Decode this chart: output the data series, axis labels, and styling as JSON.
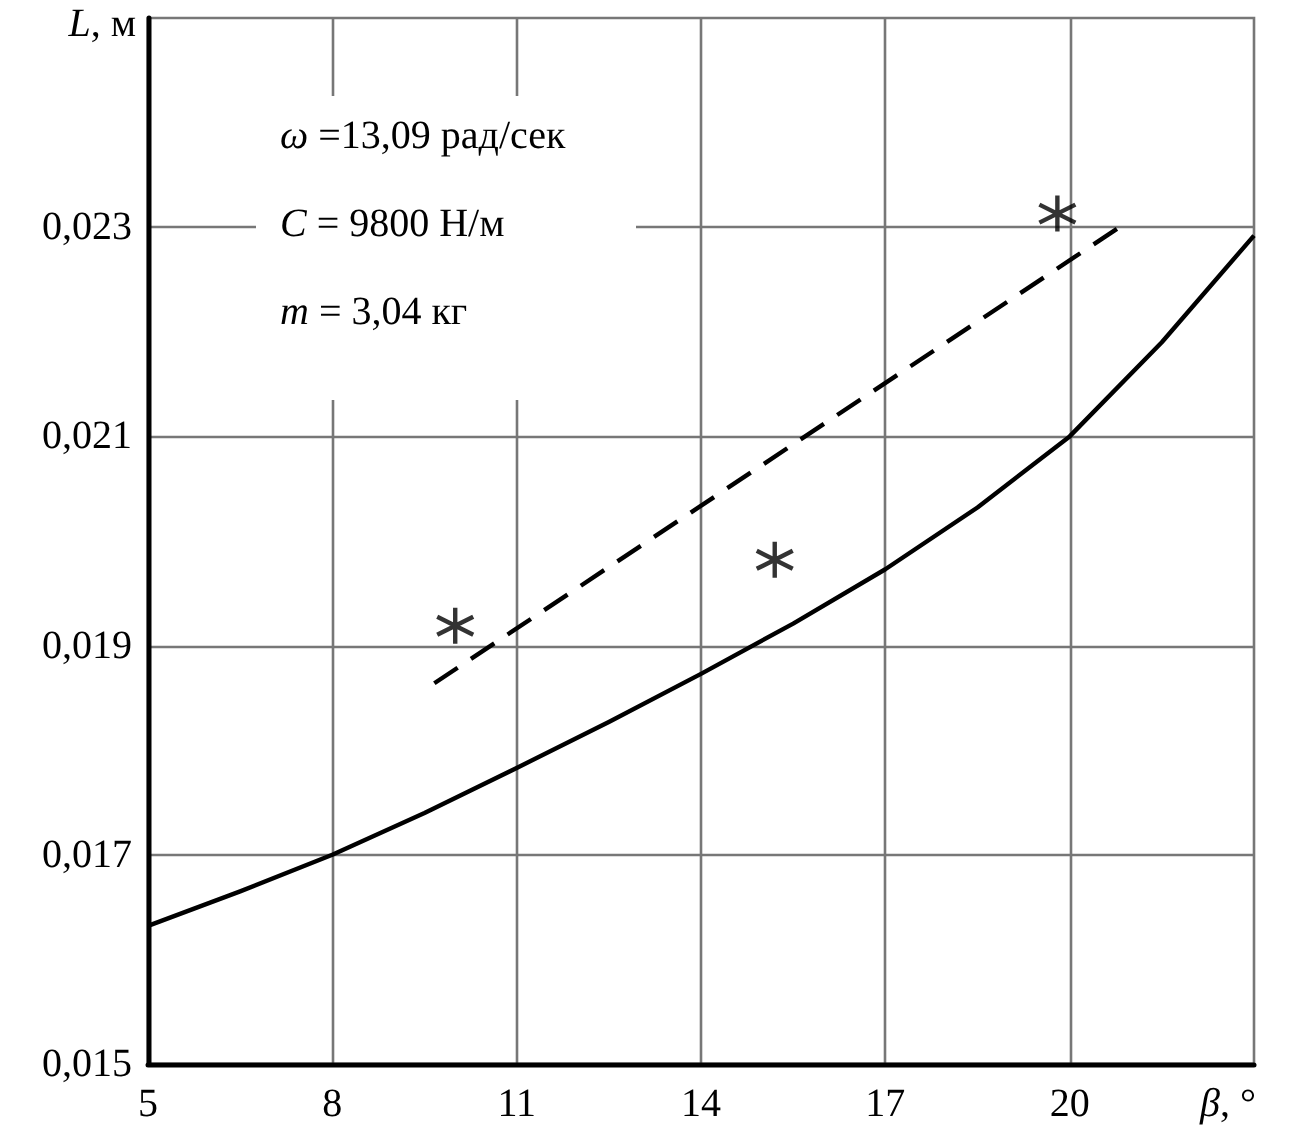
{
  "chart_data": {
    "type": "line",
    "xlabel": "β, °",
    "ylabel": "L, м",
    "annotations": [
      "ω =13,09 рад/сек",
      "C = 9800 Н/м",
      "m = 3,04 кг"
    ],
    "xlim": [
      5,
      23
    ],
    "xticks": [
      5,
      8,
      11,
      14,
      17,
      20
    ],
    "ylim": [
      0.015,
      0.025
    ],
    "yticks": [
      {
        "value": 0.015,
        "label": "0,015"
      },
      {
        "value": 0.017,
        "label": "0,017"
      },
      {
        "value": 0.019,
        "label": "0,019"
      },
      {
        "value": 0.021,
        "label": "0,021"
      },
      {
        "value": 0.023,
        "label": "0,023"
      }
    ],
    "grid": true,
    "series": [
      {
        "color": "#000000",
        "line_style": "solid",
        "marker": "none",
        "x": [
          5,
          6.5,
          8,
          9.5,
          11,
          12.5,
          14,
          15.5,
          17,
          18.5,
          20,
          21.5,
          23
        ],
        "values": [
          0.01632,
          0.01665,
          0.017,
          0.0174,
          0.01783,
          0.01827,
          0.01873,
          0.01921,
          0.01973,
          0.02032,
          0.021,
          0.0219,
          0.02292
        ]
      },
      {
        "color": "#000000",
        "line_style": "dashed",
        "marker": "none",
        "x": [
          9.66,
          20.86
        ],
        "values": [
          0.01864,
          0.02302
        ]
      },
      {
        "type": "scatter",
        "color": "#000000",
        "marker": "cross",
        "x": [
          10.0,
          15.2,
          19.8
        ],
        "values": [
          0.01919,
          0.01982,
          0.02313
        ]
      }
    ]
  }
}
